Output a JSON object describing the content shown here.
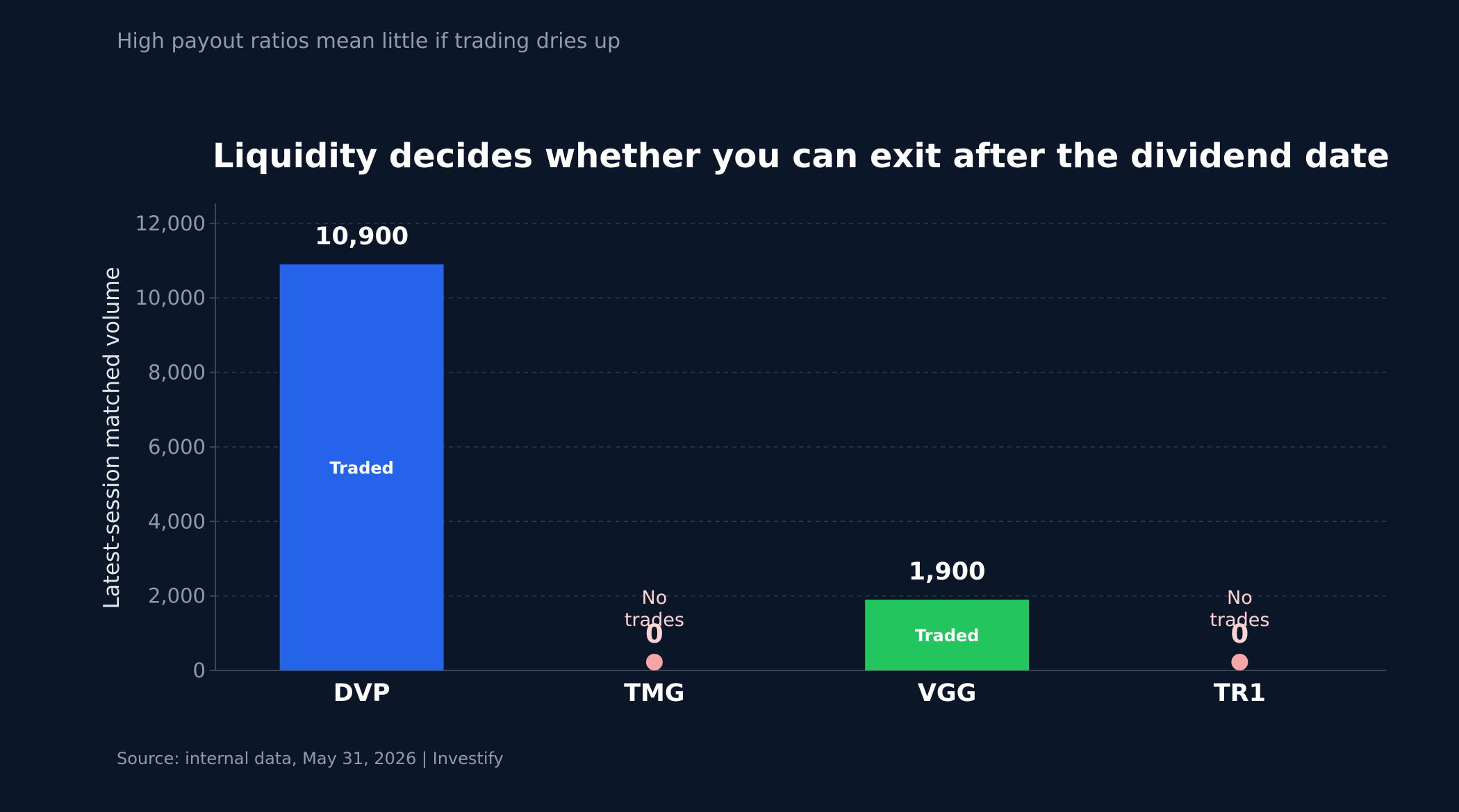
{
  "subtitle": "High payout ratios mean little if trading dries up",
  "source": "Source: internal data, May 31, 2026 | Investify",
  "colors": {
    "background": "#0b1628",
    "traded_primary": "#2563eb",
    "traded_secondary": "#22c55e",
    "no_trade_marker": "#f8a5a5"
  },
  "chart_data": {
    "type": "bar",
    "title": "Liquidity decides whether you can exit after the dividend date",
    "xlabel": "",
    "ylabel": "Latest-session matched volume",
    "ylim": [
      0,
      12500
    ],
    "yticks": [
      0,
      2000,
      4000,
      6000,
      8000,
      10000,
      12000
    ],
    "ytick_labels": [
      "0",
      "2,000",
      "4,000",
      "6,000",
      "8,000",
      "10,000",
      "12,000"
    ],
    "grid": true,
    "categories": [
      "DVP",
      "TMG",
      "VGG",
      "TR1"
    ],
    "values": [
      10900,
      0,
      1900,
      0
    ],
    "value_labels": [
      "10,900",
      "0",
      "1,900",
      "0"
    ],
    "bar_labels": [
      "Traded",
      "No trades",
      "Traded",
      "No trades"
    ],
    "traded": [
      true,
      false,
      true,
      false
    ]
  }
}
